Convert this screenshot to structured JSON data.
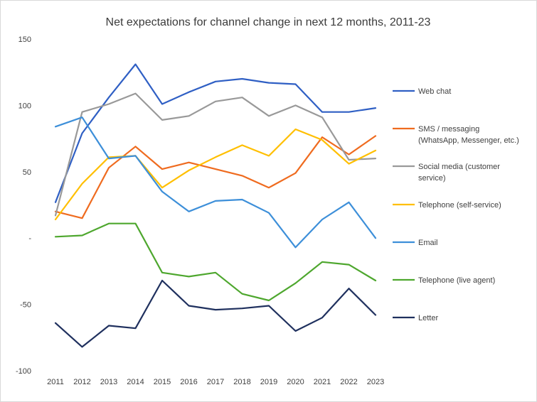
{
  "chart_data": {
    "type": "line",
    "title": "Net expectations for channel change in next 12 months, 2011-23",
    "xlabel": "",
    "ylabel": "",
    "ylim": [
      -100,
      150
    ],
    "yticks": [
      {
        "value": 150,
        "label": "150"
      },
      {
        "value": 100,
        "label": "100"
      },
      {
        "value": 50,
        "label": "50"
      },
      {
        "value": 0,
        "label": "-"
      },
      {
        "value": -50,
        "label": "-50"
      },
      {
        "value": -100,
        "label": "-100"
      }
    ],
    "grid": false,
    "legend_position": "right",
    "categories": [
      "2011",
      "2012",
      "2013",
      "2014",
      "2015",
      "2016",
      "2017",
      "2018",
      "2019",
      "2020",
      "2021",
      "2022",
      "2023"
    ],
    "series": [
      {
        "name": "Web chat",
        "legend_lines": [
          "Web chat"
        ],
        "color": "#2f5fc4",
        "values": [
          27,
          79,
          106,
          131,
          101,
          110,
          118,
          120,
          117,
          116,
          95,
          95,
          98
        ]
      },
      {
        "name": "SMS / messaging (WhatsApp, Messenger, etc.)",
        "legend_lines": [
          "SMS / messaging",
          "(WhatsApp, Messenger, etc.)"
        ],
        "color": "#ef6b1f",
        "values": [
          20,
          15,
          53,
          69,
          52,
          57,
          52,
          47,
          38,
          49,
          76,
          63,
          77
        ]
      },
      {
        "name": "Social media (customer service)",
        "legend_lines": [
          "Social media (customer",
          "service)"
        ],
        "color": "#999999",
        "values": [
          17,
          95,
          101,
          109,
          89,
          92,
          103,
          106,
          92,
          100,
          91,
          59,
          60
        ]
      },
      {
        "name": "Telephone (self-service)",
        "legend_lines": [
          "Telephone (self-service)"
        ],
        "color": "#ffbf00",
        "values": [
          14,
          41,
          61,
          62,
          38,
          51,
          61,
          70,
          62,
          82,
          74,
          56,
          66
        ]
      },
      {
        "name": "Email",
        "legend_lines": [
          "Email"
        ],
        "color": "#3d8fd9",
        "values": [
          84,
          91,
          60,
          62,
          35,
          20,
          28,
          29,
          19,
          -7,
          14,
          27,
          0
        ]
      },
      {
        "name": "Telephone (live agent)",
        "legend_lines": [
          "Telephone (live agent)"
        ],
        "color": "#4ea72e",
        "values": [
          1,
          2,
          11,
          11,
          -26,
          -29,
          -26,
          -42,
          -47,
          -34,
          -18,
          -20,
          -32
        ]
      },
      {
        "name": "Letter",
        "legend_lines": [
          "Letter"
        ],
        "color": "#1f305e",
        "values": [
          -64,
          -82,
          -66,
          -68,
          -32,
          -51,
          -54,
          -53,
          -51,
          -70,
          -60,
          -38,
          -58
        ]
      }
    ]
  }
}
